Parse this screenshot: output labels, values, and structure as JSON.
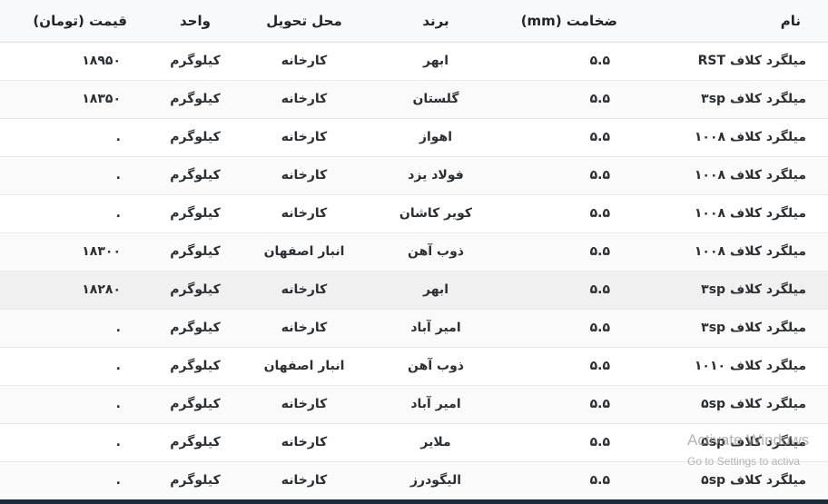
{
  "table": {
    "headers": [
      {
        "key": "name",
        "label": "نام"
      },
      {
        "key": "thickness",
        "label": "ضخامت (mm)"
      },
      {
        "key": "brand",
        "label": "برند"
      },
      {
        "key": "delivery",
        "label": "محل تحویل"
      },
      {
        "key": "unit",
        "label": "واحد"
      },
      {
        "key": "price",
        "label": "قیمت (تومان)"
      }
    ],
    "rows": [
      {
        "name": "میلگرد کلاف RST",
        "thickness": "۵.۵",
        "brand": "ابهر",
        "delivery": "کارخانه",
        "unit": "کیلوگرم",
        "price": "۱۸۹۵۰",
        "highlight": false
      },
      {
        "name": "میلگرد کلاف ۳sp",
        "thickness": "۵.۵",
        "brand": "گلستان",
        "delivery": "کارخانه",
        "unit": "کیلوگرم",
        "price": "۱۸۳۵۰",
        "highlight": false
      },
      {
        "name": "میلگرد کلاف ۱۰۰۸",
        "thickness": "۵.۵",
        "brand": "اهواز",
        "delivery": "کارخانه",
        "unit": "کیلوگرم",
        "price": ".",
        "highlight": false
      },
      {
        "name": "میلگرد کلاف ۱۰۰۸",
        "thickness": "۵.۵",
        "brand": "فولاد یزد",
        "delivery": "کارخانه",
        "unit": "کیلوگرم",
        "price": ".",
        "highlight": false
      },
      {
        "name": "میلگرد کلاف ۱۰۰۸",
        "thickness": "۵.۵",
        "brand": "کویر کاشان",
        "delivery": "کارخانه",
        "unit": "کیلوگرم",
        "price": ".",
        "highlight": false
      },
      {
        "name": "میلگرد کلاف ۱۰۰۸",
        "thickness": "۵.۵",
        "brand": "ذوب آهن",
        "delivery": "انبار اصفهان",
        "unit": "کیلوگرم",
        "price": "۱۸۳۰۰",
        "highlight": false
      },
      {
        "name": "میلگرد کلاف ۳sp",
        "thickness": "۵.۵",
        "brand": "ابهر",
        "delivery": "کارخانه",
        "unit": "کیلوگرم",
        "price": "۱۸۲۸۰",
        "highlight": true
      },
      {
        "name": "میلگرد کلاف ۳sp",
        "thickness": "۵.۵",
        "brand": "امیر آباد",
        "delivery": "کارخانه",
        "unit": "کیلوگرم",
        "price": ".",
        "highlight": false
      },
      {
        "name": "میلگرد کلاف ۱۰۱۰",
        "thickness": "۵.۵",
        "brand": "ذوب آهن",
        "delivery": "انبار اصفهان",
        "unit": "کیلوگرم",
        "price": ".",
        "highlight": false
      },
      {
        "name": "میلگرد کلاف ۵sp",
        "thickness": "۵.۵",
        "brand": "امیر آباد",
        "delivery": "کارخانه",
        "unit": "کیلوگرم",
        "price": ".",
        "highlight": false
      },
      {
        "name": "میلگرد کلاف ۵sp",
        "thickness": "۵.۵",
        "brand": "ملایر",
        "delivery": "کارخانه",
        "unit": "کیلوگرم",
        "price": ".",
        "highlight": false
      },
      {
        "name": "میلگرد کلاف ۵sp",
        "thickness": "۵.۵",
        "brand": "الیگودرز",
        "delivery": "کارخانه",
        "unit": "کیلوگرم",
        "price": ".",
        "highlight": false
      }
    ]
  },
  "watermark": {
    "line1": "Activate Windows",
    "line2": "Go to Settings to activa"
  },
  "colors": {
    "header_bg": "#f8f9fa",
    "row_alt_bg": "#fafafa",
    "row_highlight_bg": "#f0f0f0",
    "row_border": "#e9e9e9",
    "text": "#212529",
    "watermark_gray": "#b5b5b5",
    "bottom_bar": "#1c2b38"
  }
}
